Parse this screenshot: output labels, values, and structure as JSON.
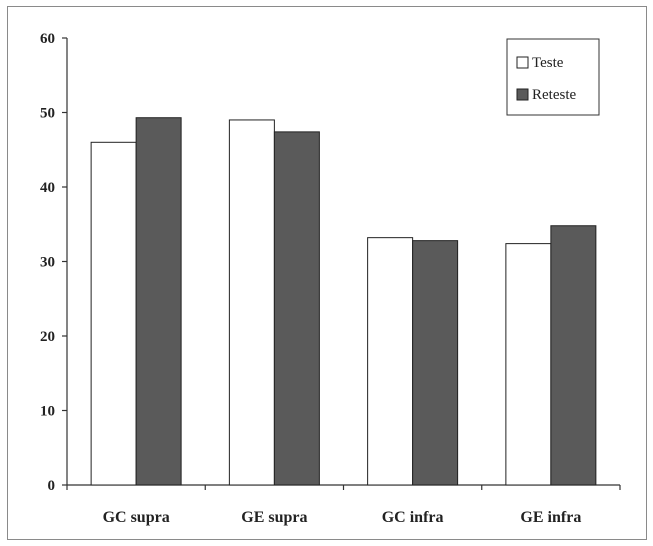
{
  "chart_data": {
    "type": "bar",
    "title": "",
    "xlabel": "",
    "ylabel": "",
    "categories": [
      "GC supra",
      "GE supra",
      "GC infra",
      "GE infra"
    ],
    "series": [
      {
        "name": "Teste",
        "values": [
          46,
          49,
          33.2,
          32.4
        ],
        "color": "#ffffff"
      },
      {
        "name": "Reteste",
        "values": [
          49.3,
          47.4,
          32.8,
          34.8
        ],
        "color": "#5a5a5a"
      }
    ],
    "ylim": [
      0,
      60
    ],
    "yticks": [
      0,
      10,
      20,
      30,
      40,
      50,
      60
    ],
    "grid": false,
    "legend": "top-right"
  }
}
